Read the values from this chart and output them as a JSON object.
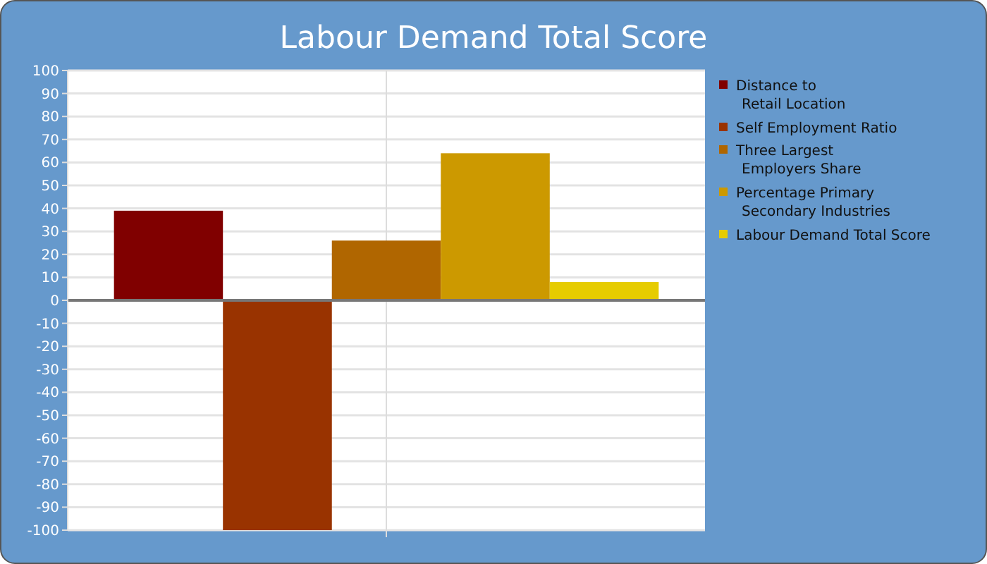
{
  "chart_data": {
    "type": "bar",
    "title": "Labour Demand Total Score",
    "categories": [
      null
    ],
    "series": [
      {
        "name": "Distance to\nRetail Location",
        "color": "#800000",
        "values": [
          39
        ]
      },
      {
        "name": "Self Employment Ratio",
        "color": "#993300",
        "values": [
          -100
        ]
      },
      {
        "name": "Three Largest\nEmployers Share",
        "color": "#b06600",
        "values": [
          26
        ]
      },
      {
        "name": "Percentage Primary\nSecondary Industries",
        "color": "#cc9900",
        "values": [
          64
        ]
      },
      {
        "name": "Labour Demand Total Score",
        "color": "#e6cc00",
        "values": [
          8
        ]
      }
    ],
    "ylim": [
      -100,
      100
    ],
    "yticks": [
      -100,
      -90,
      -80,
      -70,
      -60,
      -50,
      -40,
      -30,
      -20,
      -10,
      0,
      10,
      20,
      30,
      40,
      50,
      60,
      70,
      80,
      90,
      100
    ],
    "grid": true,
    "legend": "right"
  }
}
